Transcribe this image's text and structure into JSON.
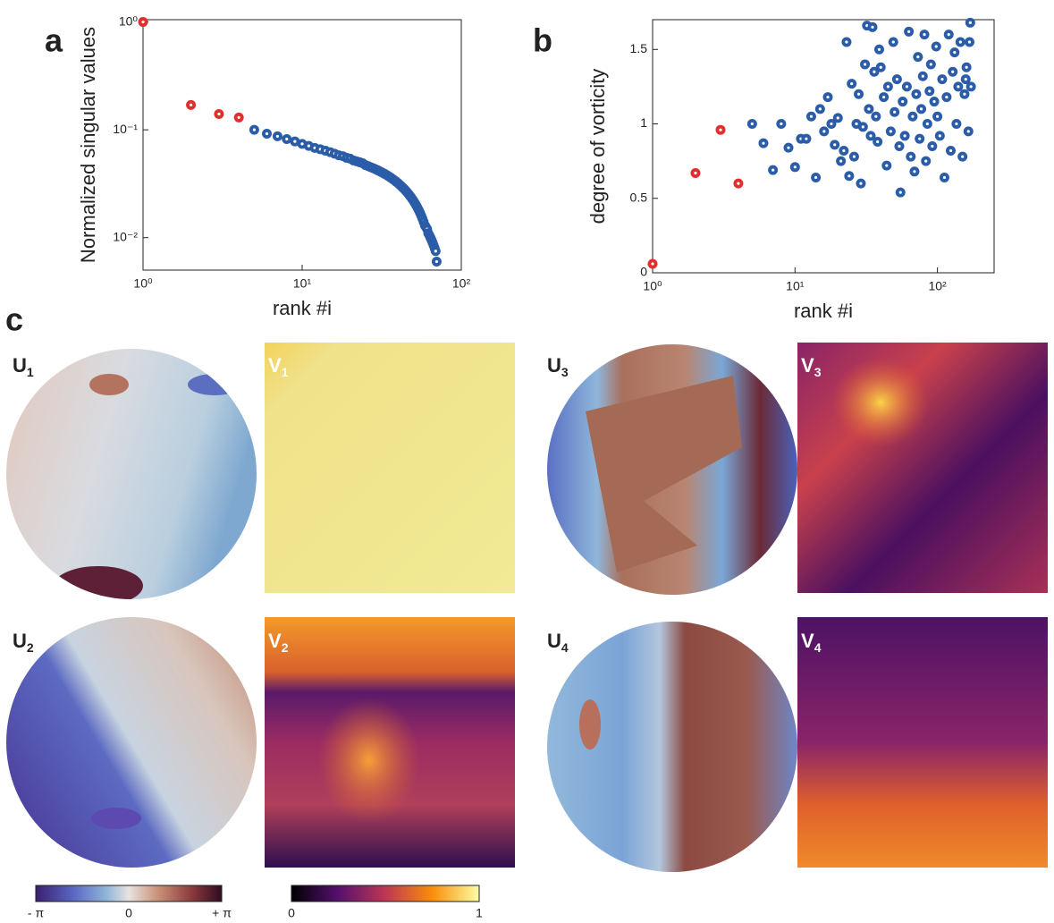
{
  "chart_data": [
    {
      "type": "scatter",
      "xscale": "log",
      "yscale": "log",
      "xlabel": "rank #i",
      "ylabel": "Normalized singular values",
      "xlim": [
        1,
        100
      ],
      "ylim": [
        0.005,
        1.05
      ],
      "xticks": [
        {
          "value": 1,
          "label": "10⁰"
        },
        {
          "value": 10,
          "label": "10¹"
        },
        {
          "value": 100,
          "label": "10²"
        }
      ],
      "yticks": [
        {
          "value": 0.01,
          "label": "10⁻²"
        },
        {
          "value": 0.1,
          "label": "10⁻¹"
        },
        {
          "value": 1,
          "label": "10⁰"
        }
      ],
      "series": [
        {
          "color": "#e0302e",
          "x": [
            1,
            2,
            3,
            4
          ],
          "values": [
            1,
            0.17,
            0.14,
            0.13
          ]
        },
        {
          "color": "#2a5ca8",
          "x": [
            5,
            6,
            7,
            8,
            9,
            10,
            11,
            12,
            13,
            14,
            15,
            16,
            17,
            18,
            19,
            20,
            21,
            22,
            23,
            24,
            25,
            26,
            27,
            28,
            29,
            30,
            31,
            32,
            33,
            34,
            35,
            36,
            37,
            38,
            39,
            40,
            41,
            42,
            43,
            44,
            45,
            46,
            47,
            48,
            49,
            50,
            51,
            52,
            53,
            54,
            55,
            56,
            57,
            58,
            59,
            60,
            61,
            62,
            63,
            64,
            65,
            66,
            67,
            68,
            69,
            70
          ],
          "values": [
            0.1,
            0.092,
            0.087,
            0.082,
            0.078,
            0.074,
            0.071,
            0.068,
            0.066,
            0.064,
            0.062,
            0.06,
            0.058,
            0.057,
            0.055,
            0.054,
            0.052,
            0.051,
            0.05,
            0.049,
            0.047,
            0.046,
            0.045,
            0.044,
            0.043,
            0.042,
            0.041,
            0.04,
            0.039,
            0.038,
            0.037,
            0.036,
            0.035,
            0.034,
            0.033,
            0.032,
            0.031,
            0.03,
            0.029,
            0.028,
            0.027,
            0.026,
            0.025,
            0.024,
            0.023,
            0.022,
            0.021,
            0.02,
            0.019,
            0.018,
            0.017,
            0.016,
            0.015,
            0.014,
            0.013,
            0.0125,
            0.012,
            0.011,
            0.0105,
            0.01,
            0.0095,
            0.009,
            0.0085,
            0.008,
            0.0075,
            0.006
          ]
        }
      ]
    },
    {
      "type": "scatter",
      "xscale": "log",
      "xlabel": "rank #i",
      "ylabel": "degree of vorticity",
      "xlim": [
        1,
        250
      ],
      "ylim": [
        0,
        1.7
      ],
      "xticks": [
        {
          "value": 1,
          "label": "10⁰"
        },
        {
          "value": 10,
          "label": "10¹"
        },
        {
          "value": 100,
          "label": "10²"
        }
      ],
      "yticks": [
        0,
        0.5,
        1,
        1.5
      ],
      "series": [
        {
          "color": "#e0302e",
          "x": [
            1,
            2,
            3,
            4
          ],
          "values": [
            0.06,
            0.67,
            0.96,
            0.6
          ]
        },
        {
          "color": "#2a5ca8",
          "x": [
            5,
            6,
            7,
            8,
            9,
            10,
            11,
            12,
            13,
            14,
            15,
            16,
            17,
            18,
            19,
            20,
            21,
            22,
            23,
            24,
            25,
            26,
            27,
            28,
            29,
            30,
            31,
            32,
            33,
            34,
            35,
            36,
            37,
            38,
            39,
            40,
            42,
            44,
            45,
            47,
            49,
            50,
            52,
            54,
            55,
            57,
            59,
            61,
            63,
            65,
            67,
            69,
            71,
            73,
            75,
            77,
            79,
            81,
            83,
            85,
            88,
            90,
            92,
            95,
            98,
            100,
            104,
            108,
            112,
            116,
            120,
            124,
            128,
            132,
            136,
            140,
            145,
            150,
            155,
            160,
            165,
            170,
            172,
            168,
            158
          ],
          "values": [
            1.0,
            0.87,
            0.69,
            1.0,
            0.84,
            0.71,
            0.9,
            0.9,
            1.05,
            0.64,
            1.1,
            0.95,
            1.18,
            1.0,
            0.86,
            1.04,
            0.75,
            0.82,
            1.55,
            0.65,
            1.27,
            0.78,
            1.0,
            1.2,
            0.6,
            0.98,
            1.4,
            1.66,
            1.1,
            0.92,
            1.65,
            1.35,
            1.05,
            0.88,
            1.5,
            1.38,
            1.18,
            0.72,
            1.25,
            0.95,
            1.55,
            1.08,
            1.3,
            0.85,
            0.54,
            1.15,
            0.92,
            1.25,
            1.62,
            0.78,
            1.05,
            0.68,
            1.2,
            1.45,
            0.9,
            1.1,
            1.32,
            1.6,
            0.75,
            1.0,
            1.22,
            1.4,
            0.85,
            1.15,
            1.52,
            1.05,
            0.92,
            1.3,
            0.64,
            1.18,
            1.6,
            0.82,
            1.35,
            1.48,
            1.0,
            1.25,
            1.55,
            0.78,
            1.2,
            1.38,
            0.95,
            1.68,
            1.25,
            1.55,
            1.3
          ]
        }
      ]
    }
  ],
  "panel_letters": [
    "a",
    "b",
    "c"
  ],
  "maps": [
    {
      "letter": "U",
      "sub": "1"
    },
    {
      "letter": "V",
      "sub": "1"
    },
    {
      "letter": "U",
      "sub": "3"
    },
    {
      "letter": "V",
      "sub": "3"
    },
    {
      "letter": "U",
      "sub": "2"
    },
    {
      "letter": "V",
      "sub": "2"
    },
    {
      "letter": "U",
      "sub": "4"
    },
    {
      "letter": "V",
      "sub": "4"
    }
  ],
  "colorbars": [
    {
      "ticks": [
        "- π",
        "0",
        "+ π"
      ]
    },
    {
      "ticks": [
        "0",
        "1"
      ]
    }
  ]
}
